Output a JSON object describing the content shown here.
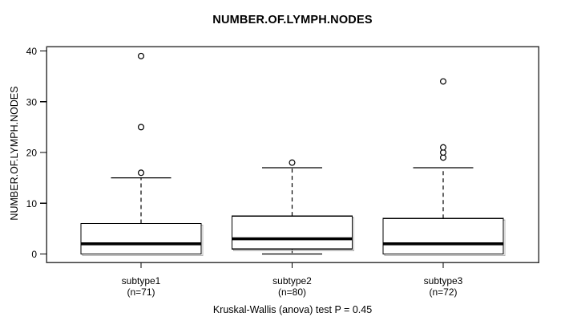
{
  "title": "NUMBER.OF.LYMPH.NODES",
  "y_axis": {
    "label": "NUMBER.OF.LYMPH.NODES",
    "ticks": [
      "0",
      "10",
      "20",
      "30",
      "40"
    ]
  },
  "footer": "Kruskal-Wallis (anova) test P = 0.45",
  "colors": {
    "foreground": "#000000",
    "background": "#ffffff",
    "box_fill": "#ffffff",
    "box_shadow": "#b5b5b5"
  },
  "chart_data": {
    "type": "boxplot",
    "title": "NUMBER.OF.LYMPH.NODES",
    "ylabel": "NUMBER.OF.LYMPH.NODES",
    "xlabel": "",
    "ylim": [
      0,
      40
    ],
    "yticks": [
      0,
      10,
      20,
      30,
      40
    ],
    "grid": false,
    "annotation": "Kruskal-Wallis (anova) test P = 0.45",
    "groups": [
      {
        "label": "subtype1",
        "sublabel": "(n=71)",
        "n": 71,
        "whisker_low": 0,
        "q1": 0,
        "median": 2,
        "q3": 6,
        "whisker_high": 15,
        "outliers": [
          16,
          25,
          39
        ]
      },
      {
        "label": "subtype2",
        "sublabel": "(n=80)",
        "n": 80,
        "whisker_low": 0,
        "q1": 1,
        "median": 3,
        "q3": 7.5,
        "whisker_high": 17,
        "outliers": [
          18
        ]
      },
      {
        "label": "subtype3",
        "sublabel": "(n=72)",
        "n": 72,
        "whisker_low": 0,
        "q1": 0,
        "median": 2,
        "q3": 7,
        "whisker_high": 17,
        "outliers": [
          19,
          20,
          21,
          34
        ]
      }
    ]
  }
}
